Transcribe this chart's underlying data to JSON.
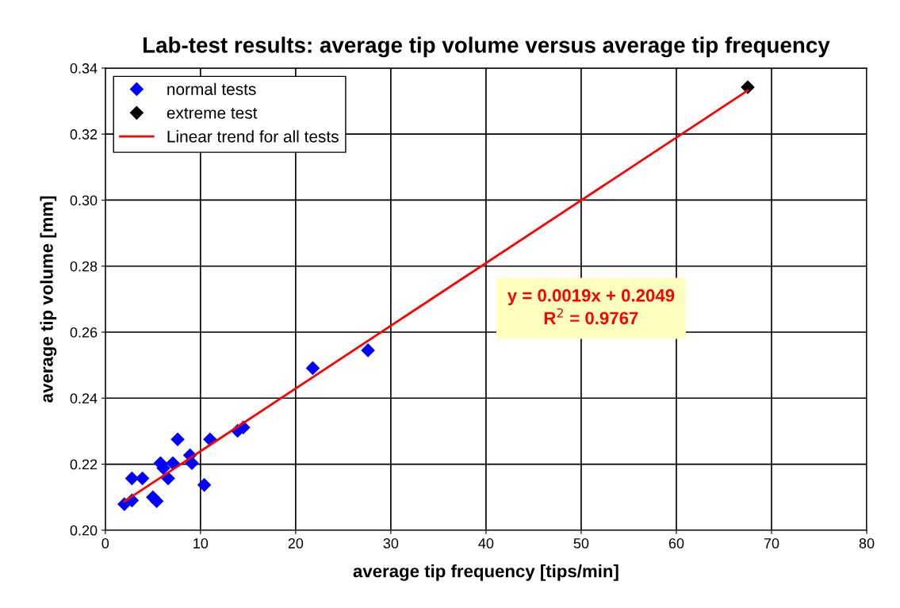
{
  "chart_data": {
    "type": "scatter",
    "title": "Lab-test results: average tip volume versus average tip frequency",
    "xlabel": "average tip frequency [tips/min]",
    "ylabel": "average tip volume [mm]",
    "series": [
      {
        "name": "normal tests",
        "color": "#0000ff",
        "marker": "diamond",
        "x": [
          2.0,
          2.8,
          2.8,
          3.9,
          5.0,
          5.4,
          5.8,
          6.1,
          6.6,
          7.1,
          7.6,
          8.9,
          9.1,
          10.4,
          11.0,
          13.9,
          14.5,
          21.8,
          27.6
        ],
        "values": [
          0.2079,
          0.209,
          0.2157,
          0.2157,
          0.21,
          0.2088,
          0.2203,
          0.2188,
          0.2157,
          0.2203,
          0.2275,
          0.2227,
          0.2203,
          0.2137,
          0.2275,
          0.2301,
          0.2311,
          0.2491,
          0.2545
        ]
      },
      {
        "name": "extreme test",
        "color": "#000000",
        "marker": "diamond",
        "x": [
          67.5
        ],
        "values": [
          0.3342
        ]
      },
      {
        "name": "Linear trend for all tests",
        "type": "line",
        "color": "#ff0000",
        "marker": "none",
        "line_style": "solid",
        "x": [
          2.0,
          67.5
        ],
        "values": [
          0.2087,
          0.3332
        ]
      }
    ],
    "annotations": [
      "y = 0.0019x + 0.2049\nR$^{2}$ = 0.9767"
    ],
    "xlim": [
      0,
      80
    ],
    "xticks": [
      0,
      10,
      20,
      30,
      40,
      50,
      60,
      70,
      80
    ],
    "ylim": [
      0.2,
      0.34
    ],
    "yticks": [
      {
        "value": 0.2,
        "label": "0.20"
      },
      {
        "value": 0.22,
        "label": "0.22"
      },
      {
        "value": 0.24,
        "label": "0.24"
      },
      {
        "value": 0.26,
        "label": "0.26"
      },
      {
        "value": 0.28,
        "label": "0.28"
      },
      {
        "value": 0.3,
        "label": "0.30"
      },
      {
        "value": 0.32,
        "label": "0.32"
      },
      {
        "value": 0.34,
        "label": "0.34"
      }
    ],
    "grid": true,
    "legend": "top left"
  }
}
